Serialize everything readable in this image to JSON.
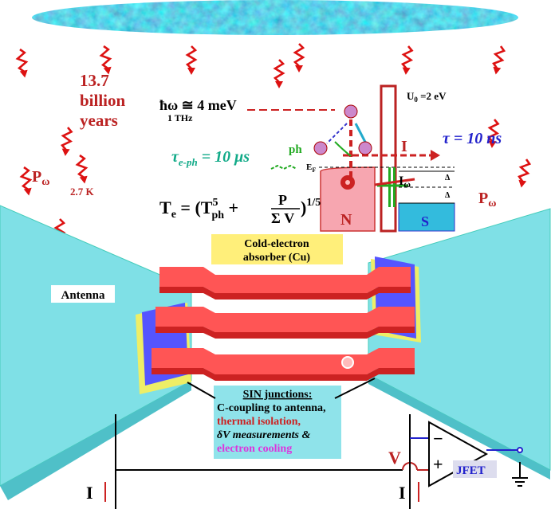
{
  "age": {
    "value": "13.7",
    "line2": "billion",
    "line3": "years"
  },
  "photon": {
    "energy": "ħω ≅ 4 meV",
    "frequency": "1 THz"
  },
  "barrier": {
    "symbol": "U",
    "sub": "0",
    "value": " =2 eV"
  },
  "tau_tunnel": "τ = 10 ns",
  "tau_eph": {
    "symbol": "τ",
    "sub": "e-ph",
    "value": " = 10 μs"
  },
  "phonon": "ph",
  "fermi": {
    "symbol": "E",
    "sub": "F"
  },
  "current_label": "I",
  "signal_current": {
    "symbol": "I",
    "sub": "ω"
  },
  "gap": [
    "Δ",
    "Δ"
  ],
  "normal_label": "N",
  "super_label": "S",
  "power_left": {
    "symbol": "P",
    "sub": "ω"
  },
  "temperature": "2.7 K",
  "power_right": {
    "symbol": "P",
    "sub": "ω"
  },
  "formula": {
    "lhs": "T",
    "lhs_sub": "e",
    "eq": " = (T",
    "sup": "5",
    "sub": "ph",
    "plus": " + ",
    "num": "P",
    "den": "Σ V",
    "close": ")",
    "exp": "1/5"
  },
  "absorber": [
    "Cold-electron",
    "absorber (Cu)"
  ],
  "antenna": "Antenna",
  "sin_box": {
    "title": "SIN junctions:",
    "lines": [
      "C-coupling to antenna,",
      "thermal isolation,",
      "δV measurements &",
      "electron cooling"
    ]
  },
  "circuit": {
    "voltage": "V",
    "amplifier": "JFET",
    "minus": "−",
    "plus": "+",
    "current_left": "I",
    "current_right": "I"
  }
}
